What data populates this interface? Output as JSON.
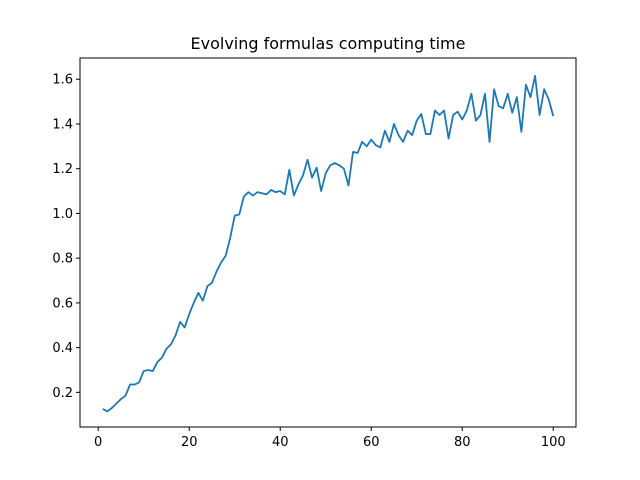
{
  "chart_data": {
    "type": "line",
    "title": "Evolving formulas computing time",
    "xlabel": "",
    "ylabel": "",
    "xlim": [
      -4,
      105
    ],
    "ylim": [
      0.045,
      1.695
    ],
    "xticks": [
      0,
      20,
      40,
      60,
      80,
      100
    ],
    "yticks": [
      0.2,
      0.4,
      0.6,
      0.8,
      1.0,
      1.2,
      1.4,
      1.6
    ],
    "ytick_labels": [
      "0.2",
      "0.4",
      "0.6",
      "0.8",
      "1.0",
      "1.2",
      "1.4",
      "1.6"
    ],
    "grid": false,
    "legend": false,
    "series": [
      {
        "color": "#1f77b4",
        "x": [
          1,
          2,
          3,
          4,
          5,
          6,
          7,
          8,
          9,
          10,
          11,
          12,
          13,
          14,
          15,
          16,
          17,
          18,
          19,
          20,
          21,
          22,
          23,
          24,
          25,
          26,
          27,
          28,
          29,
          30,
          31,
          32,
          33,
          34,
          35,
          36,
          37,
          38,
          39,
          40,
          41,
          42,
          43,
          44,
          45,
          46,
          47,
          48,
          49,
          50,
          51,
          52,
          53,
          54,
          55,
          56,
          57,
          58,
          59,
          60,
          61,
          62,
          63,
          64,
          65,
          66,
          67,
          68,
          69,
          70,
          71,
          72,
          73,
          74,
          75,
          76,
          77,
          78,
          79,
          80,
          81,
          82,
          83,
          84,
          85,
          86,
          87,
          88,
          89,
          90,
          91,
          92,
          93,
          94,
          95,
          96,
          97,
          98,
          99,
          100
        ],
        "y": [
          0.125,
          0.115,
          0.13,
          0.15,
          0.17,
          0.185,
          0.235,
          0.235,
          0.245,
          0.295,
          0.3,
          0.295,
          0.335,
          0.355,
          0.395,
          0.415,
          0.455,
          0.515,
          0.49,
          0.55,
          0.6,
          0.645,
          0.61,
          0.675,
          0.69,
          0.74,
          0.78,
          0.81,
          0.89,
          0.99,
          0.995,
          1.075,
          1.095,
          1.08,
          1.095,
          1.09,
          1.085,
          1.105,
          1.095,
          1.1,
          1.085,
          1.195,
          1.08,
          1.13,
          1.17,
          1.24,
          1.16,
          1.205,
          1.1,
          1.18,
          1.215,
          1.225,
          1.215,
          1.2,
          1.125,
          1.275,
          1.27,
          1.32,
          1.3,
          1.33,
          1.305,
          1.295,
          1.37,
          1.32,
          1.4,
          1.35,
          1.32,
          1.37,
          1.35,
          1.415,
          1.445,
          1.355,
          1.355,
          1.46,
          1.44,
          1.46,
          1.335,
          1.44,
          1.455,
          1.42,
          1.46,
          1.535,
          1.415,
          1.44,
          1.535,
          1.32,
          1.555,
          1.48,
          1.47,
          1.535,
          1.45,
          1.52,
          1.365,
          1.575,
          1.52,
          1.615,
          1.44,
          1.555,
          1.51,
          1.435
        ]
      }
    ]
  }
}
